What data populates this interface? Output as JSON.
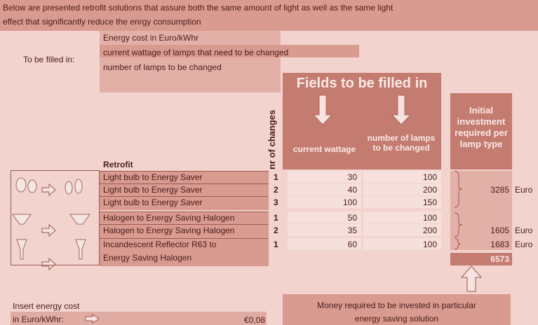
{
  "header": {
    "lines": [
      "Below are presented retrofit solutions that assure both the same amount of light as well as the same light",
      "effect that significantly reduce the enrgy consumption"
    ]
  },
  "inputs": {
    "label": "To be filled in:",
    "items": [
      "Energy cost in Euro/kWhr",
      "current wattage of lamps that need to be changed",
      "number of lamps to be changed"
    ]
  },
  "fields": {
    "title": "Fields to be filled in",
    "col_wattage": "current wattage",
    "col_lamps": "number of lamps to be changed"
  },
  "changes_header": "nr of changes",
  "investment_header": "Initial investment required per lamp type",
  "table": {
    "header": "Retrofit",
    "rows": [
      {
        "name": [
          "Light bulb to Energy Saver"
        ],
        "changes": 1,
        "wattage": 30,
        "lamps": 100
      },
      {
        "name": [
          "Light bulb to Energy Saver"
        ],
        "changes": 2,
        "wattage": 40,
        "lamps": 200
      },
      {
        "name": [
          "Light bulb to Energy Saver"
        ],
        "changes": 3,
        "wattage": 100,
        "lamps": 150
      },
      {
        "name": [
          "Halogen to Energy Saving Halogen"
        ],
        "changes": 1,
        "wattage": 50,
        "lamps": 100
      },
      {
        "name": [
          "Halogen to Energy Saving Halogen"
        ],
        "changes": 2,
        "wattage": 35,
        "lamps": 200
      },
      {
        "name": [
          "Incandescent Reflector R63 to",
          "Energy Saving Halogen"
        ],
        "changes": 1,
        "wattage": 60,
        "lamps": 100
      }
    ]
  },
  "investments": [
    {
      "value": 3285,
      "unit": "Euro"
    },
    {
      "value": 1605,
      "unit": "Euro"
    },
    {
      "value": 1683,
      "unit": "Euro"
    }
  ],
  "total": 6573,
  "energy_cost": {
    "label": [
      "Insert energy cost",
      "in Euro/kWhr:"
    ],
    "value": "€0,08"
  },
  "footer": [
    "Money required to be invested in particular",
    "energy saving solution"
  ]
}
